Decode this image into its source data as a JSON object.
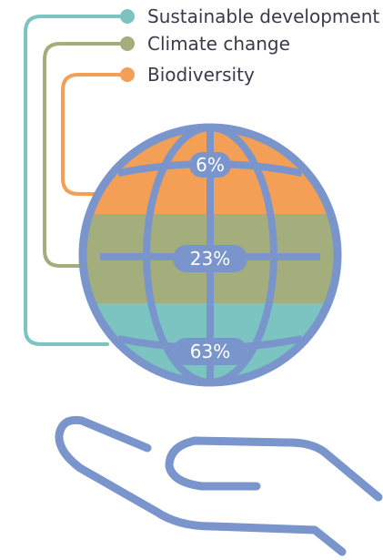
{
  "legend": [
    {
      "label": "Sustainable development",
      "color": "#7cc4c2"
    },
    {
      "label": "Climate change",
      "color": "#a3ae7c"
    },
    {
      "label": "Biodiversity",
      "color": "#f39f55"
    }
  ],
  "globe": {
    "bands": [
      {
        "label": "6%",
        "value": 6,
        "color": "#f39f55"
      },
      {
        "label": "23%",
        "value": 23,
        "color": "#a3ae7c"
      },
      {
        "label": "63%",
        "value": 63,
        "color": "#7cc4c2"
      }
    ],
    "outline_color": "#7a95cc"
  },
  "hand": {
    "icon": "open-hand-icon",
    "color": "#7a95cc"
  }
}
